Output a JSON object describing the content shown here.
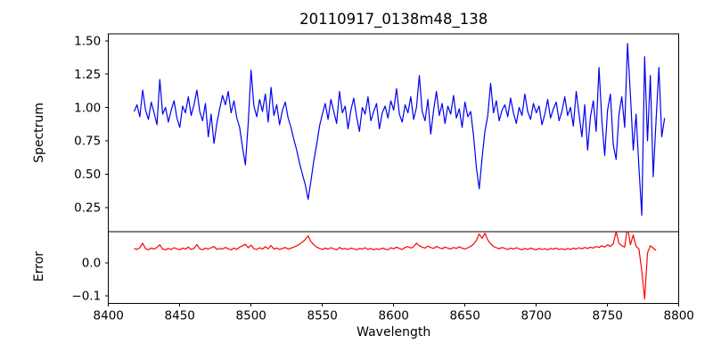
{
  "figure": {
    "background": "#ffffff",
    "frame_color": "#000000"
  },
  "chart_data": {
    "type": "line",
    "title": "20110917_0138m48_138",
    "xlabel": "Wavelength",
    "xlim": [
      8400,
      8800
    ],
    "xticks": [
      {
        "v": 8400,
        "label": "8400"
      },
      {
        "v": 8450,
        "label": "8450"
      },
      {
        "v": 8500,
        "label": "8500"
      },
      {
        "v": 8550,
        "label": "8550"
      },
      {
        "v": 8600,
        "label": "8600"
      },
      {
        "v": 8650,
        "label": "8650"
      },
      {
        "v": 8700,
        "label": "8700"
      },
      {
        "v": 8750,
        "label": "8750"
      },
      {
        "v": 8800,
        "label": "8800"
      }
    ],
    "grid": false,
    "legend": "none",
    "panels": [
      {
        "name": "spectrum",
        "ylabel": "Spectrum",
        "color": "#0000ee",
        "ylim": [
          0.068,
          1.552
        ],
        "yticks": [
          {
            "v": 1.5,
            "label": "1.50"
          },
          {
            "v": 1.25,
            "label": "1.25"
          },
          {
            "v": 1.0,
            "label": "1.00"
          },
          {
            "v": 0.75,
            "label": "0.75"
          },
          {
            "v": 0.5,
            "label": "0.50"
          },
          {
            "v": 0.25,
            "label": "0.25"
          }
        ],
        "x_start": 8418,
        "x_step": 2,
        "features_note": "absorption dips at 8498, 8542, 8662; noisy spikes 8740-8790 (max 1.48, min 0.19)",
        "values": [
          0.97,
          1.02,
          0.93,
          1.13,
          0.98,
          0.91,
          1.04,
          0.96,
          0.87,
          1.21,
          0.95,
          1.0,
          0.89,
          0.98,
          1.05,
          0.92,
          0.85,
          1.01,
          0.96,
          1.08,
          0.94,
          1.02,
          1.13,
          0.97,
          0.9,
          1.03,
          0.78,
          0.95,
          0.73,
          0.88,
          0.99,
          1.09,
          1.02,
          1.12,
          0.96,
          1.05,
          0.92,
          0.85,
          0.7,
          0.57,
          0.88,
          1.28,
          1.01,
          0.93,
          1.06,
          0.97,
          1.1,
          0.89,
          1.15,
          0.94,
          1.02,
          0.87,
          0.98,
          1.04,
          0.92,
          0.85,
          0.76,
          0.68,
          0.58,
          0.5,
          0.42,
          0.31,
          0.45,
          0.6,
          0.72,
          0.86,
          0.95,
          1.03,
          0.91,
          1.06,
          0.97,
          0.88,
          1.12,
          0.96,
          1.01,
          0.84,
          0.98,
          1.07,
          0.93,
          0.82,
          1.0,
          0.95,
          1.08,
          0.9,
          0.97,
          1.03,
          0.84,
          0.96,
          1.01,
          0.92,
          1.05,
          0.98,
          1.14,
          0.95,
          0.89,
          1.02,
          0.96,
          1.08,
          0.91,
          1.0,
          1.24,
          0.97,
          0.9,
          1.06,
          0.8,
          0.98,
          1.12,
          0.94,
          1.03,
          0.88,
          1.01,
          0.95,
          1.09,
          0.92,
          0.99,
          0.85,
          1.04,
          0.93,
          0.97,
          0.79,
          0.55,
          0.39,
          0.62,
          0.82,
          0.94,
          1.18,
          0.96,
          1.05,
          0.9,
          0.98,
          1.02,
          0.93,
          1.07,
          0.96,
          0.88,
          1.0,
          0.94,
          1.1,
          0.97,
          0.91,
          1.03,
          0.96,
          1.01,
          0.87,
          0.95,
          1.06,
          0.92,
          0.99,
          1.04,
          0.9,
          0.97,
          1.08,
          0.94,
          1.0,
          0.86,
          1.12,
          0.95,
          0.78,
          1.02,
          0.68,
          0.93,
          1.05,
          0.82,
          1.3,
          0.9,
          0.64,
          0.98,
          1.1,
          0.72,
          0.61,
          0.95,
          1.08,
          0.85,
          1.48,
          1.1,
          0.68,
          0.95,
          0.55,
          0.19,
          1.38,
          0.75,
          1.24,
          0.48,
          0.9,
          1.3,
          0.78,
          0.92
        ]
      },
      {
        "name": "error",
        "ylabel": "Error",
        "color": "#ff0000",
        "ylim": [
          -0.123,
          0.095
        ],
        "yticks": [
          {
            "v": 0.0,
            "label": "0.0"
          },
          {
            "v": -0.1,
            "label": "−0.1"
          }
        ],
        "x_start": 8418,
        "x_step": 2,
        "features_note": "baseline ~0.045; bumps at 8542 and 8662; spikes near 8756-8768; crash to -0.11 at 8776",
        "values": [
          0.044,
          0.041,
          0.046,
          0.06,
          0.043,
          0.04,
          0.045,
          0.042,
          0.047,
          0.055,
          0.042,
          0.04,
          0.044,
          0.041,
          0.046,
          0.043,
          0.04,
          0.045,
          0.042,
          0.048,
          0.041,
          0.044,
          0.056,
          0.043,
          0.04,
          0.045,
          0.042,
          0.046,
          0.05,
          0.041,
          0.044,
          0.042,
          0.047,
          0.043,
          0.04,
          0.045,
          0.041,
          0.048,
          0.052,
          0.057,
          0.046,
          0.054,
          0.043,
          0.041,
          0.046,
          0.042,
          0.049,
          0.043,
          0.053,
          0.042,
          0.045,
          0.041,
          0.044,
          0.047,
          0.042,
          0.045,
          0.048,
          0.052,
          0.057,
          0.063,
          0.071,
          0.082,
          0.065,
          0.055,
          0.048,
          0.044,
          0.041,
          0.045,
          0.042,
          0.046,
          0.043,
          0.04,
          0.047,
          0.042,
          0.044,
          0.041,
          0.045,
          0.043,
          0.04,
          0.044,
          0.042,
          0.046,
          0.041,
          0.044,
          0.04,
          0.043,
          0.041,
          0.045,
          0.042,
          0.04,
          0.046,
          0.043,
          0.048,
          0.044,
          0.041,
          0.047,
          0.05,
          0.045,
          0.049,
          0.06,
          0.052,
          0.048,
          0.045,
          0.051,
          0.047,
          0.044,
          0.05,
          0.046,
          0.043,
          0.048,
          0.045,
          0.042,
          0.047,
          0.044,
          0.049,
          0.045,
          0.042,
          0.046,
          0.05,
          0.057,
          0.068,
          0.088,
          0.075,
          0.09,
          0.07,
          0.058,
          0.05,
          0.046,
          0.043,
          0.047,
          0.044,
          0.041,
          0.045,
          0.042,
          0.046,
          0.043,
          0.04,
          0.044,
          0.041,
          0.045,
          0.042,
          0.04,
          0.044,
          0.041,
          0.043,
          0.04,
          0.044,
          0.042,
          0.045,
          0.041,
          0.043,
          0.04,
          0.044,
          0.041,
          0.045,
          0.042,
          0.046,
          0.043,
          0.047,
          0.044,
          0.048,
          0.045,
          0.05,
          0.047,
          0.052,
          0.048,
          0.055,
          0.05,
          0.058,
          0.095,
          0.06,
          0.052,
          0.048,
          0.11,
          0.055,
          0.085,
          0.05,
          0.042,
          -0.025,
          -0.11,
          0.03,
          0.052,
          0.045,
          0.038
        ]
      }
    ]
  }
}
